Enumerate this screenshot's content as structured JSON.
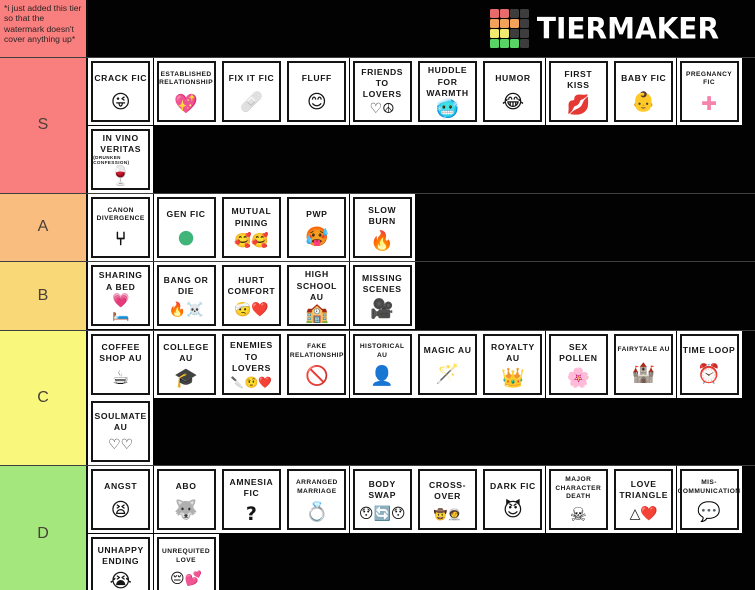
{
  "brand": {
    "name": "TIERMAKER",
    "grid_colors": [
      "#e96a6a",
      "#e96a6a",
      "#3d3d3d",
      "#3d3d3d",
      "#f2a259",
      "#f2a259",
      "#f2a259",
      "#3d3d3d",
      "#f2e96f",
      "#f2e96f",
      "#3d3d3d",
      "#3d3d3d",
      "#57d463",
      "#57d463",
      "#57d463",
      "#3d3d3d"
    ]
  },
  "watermark_note": {
    "text": "*i just added this tier so that the watermark doesn't cover anything up*",
    "color": "#f97f7f"
  },
  "tiers": [
    {
      "label": "S",
      "color": "#f97f7f",
      "items": [
        {
          "label": "CRACK FIC",
          "emoji": "😜",
          "icon": "crazy-face-emoji"
        },
        {
          "label": "ESTABLISHED RELATIONSHIP",
          "emoji": "💖",
          "icon": "sparkling-heart-emoji",
          "small": true
        },
        {
          "label": "FIX IT FIC",
          "emoji": "🩹",
          "icon": "bandage-emoji"
        },
        {
          "label": "FLUFF",
          "emoji": "😊",
          "icon": "blushing-smile-emoji"
        },
        {
          "label": "FRIENDS TO LOVERS",
          "emoji": "♡☮",
          "icon": "peace-heart-icon"
        },
        {
          "label": "HUDDLE FOR WARMTH",
          "emoji": "🥶",
          "icon": "cold-face-emoji"
        },
        {
          "label": "HUMOR",
          "emoji": "😂",
          "icon": "joy-face-emoji"
        },
        {
          "label": "FIRST KISS",
          "emoji": "💋",
          "icon": "kiss-lips-emoji"
        },
        {
          "label": "BABY FIC",
          "emoji": "👶",
          "icon": "baby-stroller-emoji",
          "color": "#d8342c"
        },
        {
          "label": "PREGNANCY FIC",
          "emoji": "✚",
          "icon": "pink-plus-icon",
          "color": "#f584ad",
          "small": true
        },
        {
          "label": "IN VINO VERITAS",
          "sublabel": "(DRUNKEN CONFESSION)",
          "emoji": "🍷",
          "icon": "wine-glass-emoji"
        }
      ]
    },
    {
      "label": "A",
      "color": "#f9bd80",
      "items": [
        {
          "label": "CANON DIVERGENCE",
          "emoji": "⑂",
          "icon": "fork-arrows-icon",
          "small": true
        },
        {
          "label": "GEN FIC",
          "emoji": "●",
          "icon": "green-circle-icon",
          "color": "#3fb57a"
        },
        {
          "label": "MUTUAL PINING",
          "emoji": "🥰🥰",
          "icon": "hearts-faces-emoji"
        },
        {
          "label": "PWP",
          "emoji": "🥵",
          "icon": "fire-grin-face-emoji"
        },
        {
          "label": "SLOW BURN",
          "emoji": "🔥",
          "icon": "flame-emoji"
        }
      ]
    },
    {
      "label": "B",
      "color": "#f9d877",
      "items": [
        {
          "label": "SHARING A BED",
          "emoji": "💗\n🛏️",
          "icon": "heart-bed-emoji"
        },
        {
          "label": "BANG OR DIE",
          "emoji": "🔥☠️",
          "icon": "flame-skull-emoji"
        },
        {
          "label": "HURT COMFORT",
          "emoji": "🤕❤️",
          "icon": "bandaged-face-heart-emoji"
        },
        {
          "label": "HIGH SCHOOL AU",
          "emoji": "🏫",
          "icon": "school-emoji"
        },
        {
          "label": "MISSING SCENES",
          "emoji": "🎥",
          "icon": "movie-camera-emoji"
        }
      ]
    },
    {
      "label": "C",
      "color": "#f9f87d",
      "items": [
        {
          "label": "COFFEE SHOP AU",
          "emoji": "☕",
          "icon": "coffee-cup-emoji"
        },
        {
          "label": "COLLEGE AU",
          "emoji": "🎓",
          "icon": "graduation-cap-emoji"
        },
        {
          "label": "ENEMIES TO LOVERS",
          "emoji": "🔪🤨❤️",
          "icon": "knife-face-heart-emoji"
        },
        {
          "label": "FAKE RELATIONSHIP",
          "emoji": "🚫",
          "icon": "cancelled-stamp-icon",
          "color": "#333333",
          "small": true
        },
        {
          "label": "HISTORICAL AU",
          "emoji": "👤",
          "icon": "cameo-silhouette-icon",
          "small": true
        },
        {
          "label": "MAGIC AU",
          "emoji": "🪄",
          "icon": "magic-wand-emoji"
        },
        {
          "label": "ROYALTY AU",
          "emoji": "👑",
          "icon": "crown-emoji"
        },
        {
          "label": "SEX POLLEN",
          "emoji": "🌸",
          "icon": "pink-flower-emoji"
        },
        {
          "label": "FAIRYTALE AU",
          "emoji": "🏰",
          "icon": "castle-gate-emoji",
          "small": true
        },
        {
          "label": "TIME LOOP",
          "emoji": "⏰",
          "icon": "alarm-clock-emoji"
        },
        {
          "label": "SOULMATE AU",
          "emoji": "♡♡",
          "icon": "linked-hearts-icon"
        }
      ]
    },
    {
      "label": "D",
      "color": "#a4e87d",
      "items": [
        {
          "label": "ANGST",
          "emoji": "😫",
          "icon": "distressed-face-emoji"
        },
        {
          "label": "ABO",
          "emoji": "🐺",
          "icon": "wolf-emoji"
        },
        {
          "label": "AMNESIA FIC",
          "emoji": "?",
          "icon": "question-mark-icon"
        },
        {
          "label": "ARRANGED MARRIAGE",
          "emoji": "💍",
          "icon": "diamond-ring-emoji",
          "small": true
        },
        {
          "label": "BODY SWAP",
          "emoji": "😯🔄😯",
          "icon": "swap-faces-emoji"
        },
        {
          "label": "CROSS-OVER",
          "emoji": "🤠🧑‍🚀",
          "icon": "cowboy-astronaut-emoji"
        },
        {
          "label": "DARK FIC",
          "emoji": "😈",
          "icon": "devil-face-emoji"
        },
        {
          "label": "MAJOR CHARACTER DEATH",
          "emoji": "☠",
          "icon": "skull-crossbones-icon",
          "small": true
        },
        {
          "label": "LOVE TRIANGLE",
          "emoji": "△❤️",
          "icon": "triangle-heart-icon"
        },
        {
          "label": "MIS-COMMUNICATION",
          "emoji": "💬",
          "icon": "speech-bubble-emoji",
          "small": true
        },
        {
          "label": "UNHAPPY ENDING",
          "emoji": "😭",
          "icon": "crying-face-emoji"
        },
        {
          "label": "UNREQUITED LOVE",
          "emoji": "😔💕",
          "icon": "sad-hearts-face-emoji",
          "small": true
        }
      ]
    }
  ]
}
